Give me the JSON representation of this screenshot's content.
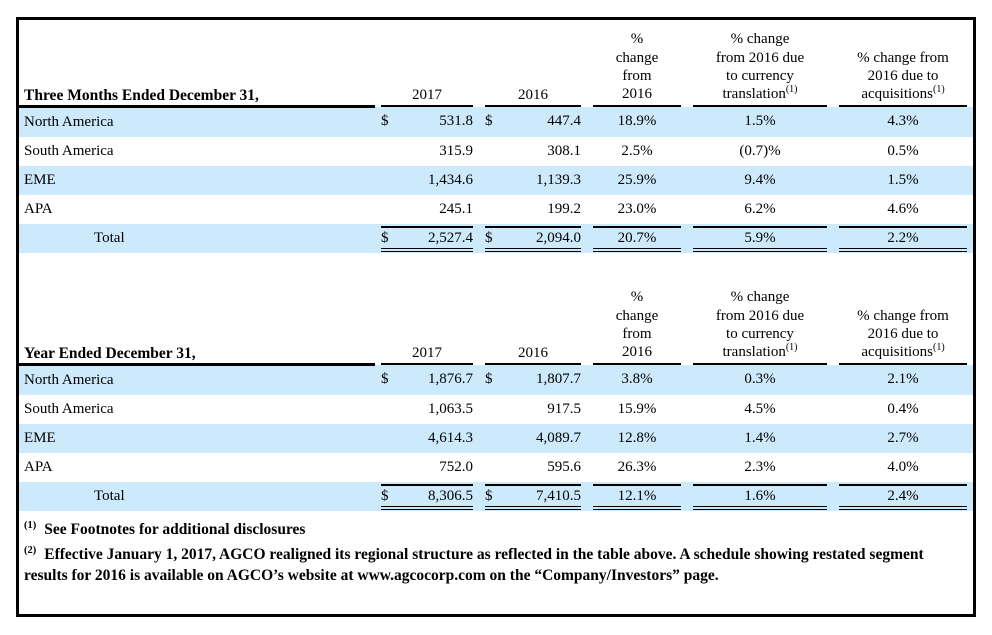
{
  "colors": {
    "row_highlight": "#cdeafc",
    "border": "#000000",
    "page_background": "#ffffff"
  },
  "tables": [
    {
      "title": "Three Months Ended December 31,",
      "col_2017": "2017",
      "col_2016": "2016",
      "pct_col_lines": [
        "%",
        "change",
        "from",
        "2016"
      ],
      "currency_col_lines": [
        "% change",
        "from 2016 due",
        "to currency",
        "translation"
      ],
      "acquisitions_col_lines": [
        "% change from",
        "2016 due to",
        "acquisitions"
      ],
      "footnote_ref": "(1)",
      "rows": [
        {
          "label": "North America",
          "dollar_2017": "$",
          "v2017": "531.8",
          "dollar_2016": "$",
          "v2016": "447.4",
          "pct_change": "18.9%",
          "pct_currency": "1.5%",
          "pct_acquisitions": "4.3%"
        },
        {
          "label": "South America",
          "dollar_2017": "",
          "v2017": "315.9",
          "dollar_2016": "",
          "v2016": "308.1",
          "pct_change": "2.5%",
          "pct_currency": "(0.7)%",
          "pct_acquisitions": "0.5%"
        },
        {
          "label": "EME",
          "dollar_2017": "",
          "v2017": "1,434.6",
          "dollar_2016": "",
          "v2016": "1,139.3",
          "pct_change": "25.9%",
          "pct_currency": "9.4%",
          "pct_acquisitions": "1.5%"
        },
        {
          "label": "APA",
          "dollar_2017": "",
          "v2017": "245.1",
          "dollar_2016": "",
          "v2016": "199.2",
          "pct_change": "23.0%",
          "pct_currency": "6.2%",
          "pct_acquisitions": "4.6%"
        },
        {
          "label": "Total",
          "dollar_2017": "$",
          "v2017": "2,527.4",
          "dollar_2016": "$",
          "v2016": "2,094.0",
          "pct_change": "20.7%",
          "pct_currency": "5.9%",
          "pct_acquisitions": "2.2%"
        }
      ]
    },
    {
      "title": "Year Ended December 31,",
      "col_2017": "2017",
      "col_2016": "2016",
      "pct_col_lines": [
        "%",
        "change",
        "from",
        "2016"
      ],
      "currency_col_lines": [
        "% change",
        "from 2016 due",
        "to currency",
        "translation"
      ],
      "acquisitions_col_lines": [
        "% change from",
        "2016 due to",
        "acquisitions"
      ],
      "footnote_ref": "(1)",
      "rows": [
        {
          "label": "North America",
          "dollar_2017": "$",
          "v2017": "1,876.7",
          "dollar_2016": "$",
          "v2016": "1,807.7",
          "pct_change": "3.8%",
          "pct_currency": "0.3%",
          "pct_acquisitions": "2.1%"
        },
        {
          "label": "South America",
          "dollar_2017": "",
          "v2017": "1,063.5",
          "dollar_2016": "",
          "v2016": "917.5",
          "pct_change": "15.9%",
          "pct_currency": "4.5%",
          "pct_acquisitions": "0.4%"
        },
        {
          "label": "EME",
          "dollar_2017": "",
          "v2017": "4,614.3",
          "dollar_2016": "",
          "v2016": "4,089.7",
          "pct_change": "12.8%",
          "pct_currency": "1.4%",
          "pct_acquisitions": "2.7%"
        },
        {
          "label": "APA",
          "dollar_2017": "",
          "v2017": "752.0",
          "dollar_2016": "",
          "v2016": "595.6",
          "pct_change": "26.3%",
          "pct_currency": "2.3%",
          "pct_acquisitions": "4.0%"
        },
        {
          "label": "Total",
          "dollar_2017": "$",
          "v2017": "8,306.5",
          "dollar_2016": "$",
          "v2016": "7,410.5",
          "pct_change": "12.1%",
          "pct_currency": "1.6%",
          "pct_acquisitions": "2.4%"
        }
      ]
    }
  ],
  "footnotes": [
    {
      "marker": "(1)",
      "text": "See Footnotes for additional disclosures"
    },
    {
      "marker": "(2)",
      "text": "Effective January 1, 2017, AGCO realigned its regional structure as reflected in the table above. A schedule showing restated segment results for 2016 is available on AGCO’s website at www.agcocorp.com on the “Company/Investors” page."
    }
  ]
}
